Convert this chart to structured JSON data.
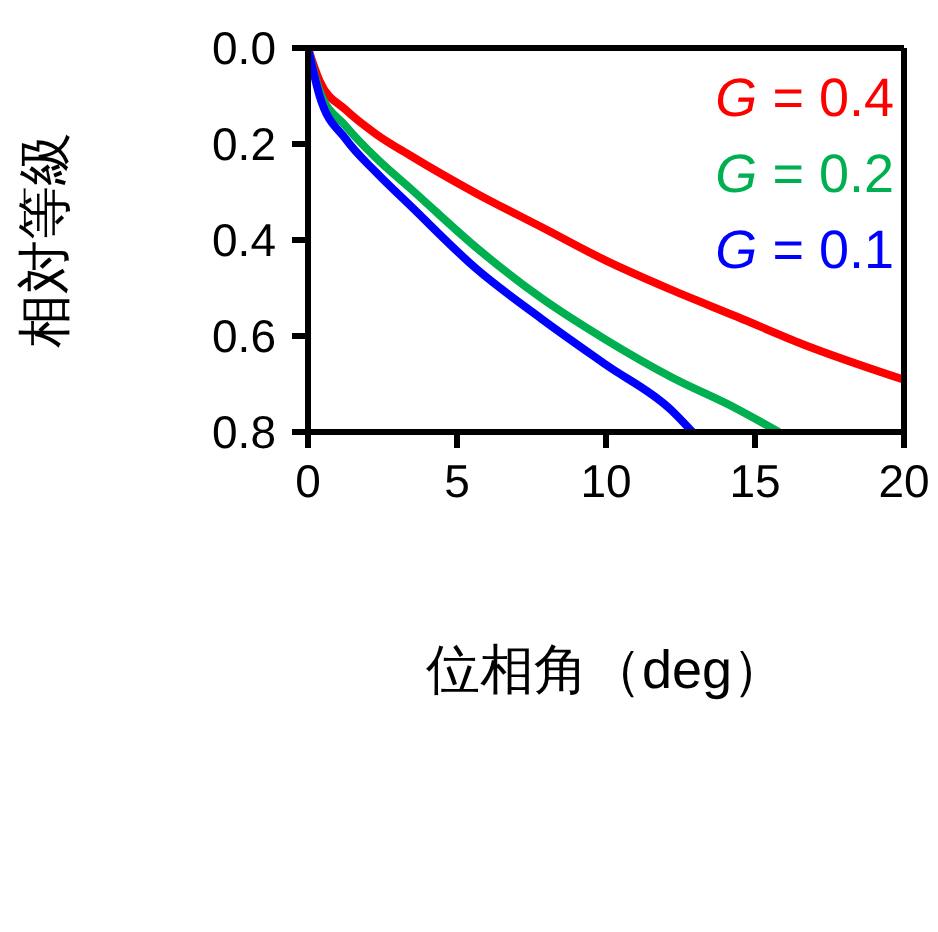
{
  "chart_data": {
    "type": "line",
    "xlabel": "位相角（deg）",
    "ylabel": "相対等級",
    "xlim": [
      0,
      20
    ],
    "xticks": [
      0,
      5,
      10,
      15,
      20
    ],
    "ylim": [
      0.8,
      0
    ],
    "yticks": [
      {
        "value": 0,
        "label": "0.0"
      },
      0.2,
      0.4,
      0.6,
      0.8
    ],
    "legend": "top right",
    "marker": "none",
    "line_style": "solid",
    "series": [
      {
        "name": "G = 0.4",
        "color": "#ff0000",
        "x": [
          0,
          0.4,
          1.27,
          2.3,
          3.46,
          5.65,
          7.83,
          10,
          12.2,
          14.4,
          16.6,
          20
        ],
        "values": [
          0,
          0.07,
          0.129,
          0.18,
          0.225,
          0.303,
          0.373,
          0.443,
          0.504,
          0.56,
          0.617,
          0.691
        ]
      },
      {
        "name": "G = 0.2",
        "color": "#00b050",
        "x": [
          0,
          0.39,
          1.27,
          2.3,
          3.46,
          5.65,
          7.83,
          10,
          12.2,
          14.4,
          15.8
        ],
        "values": [
          0,
          0.09,
          0.163,
          0.23,
          0.294,
          0.416,
          0.521,
          0.608,
          0.686,
          0.752,
          0.8
        ]
      },
      {
        "name": "G = 0.1",
        "color": "#0000ff",
        "x": [
          0,
          0.39,
          1.27,
          2.3,
          3.46,
          5.65,
          7.83,
          10,
          12.2,
          12.9
        ],
        "values": [
          0,
          0.1,
          0.19,
          0.26,
          0.33,
          0.46,
          0.564,
          0.66,
          0.755,
          0.8
        ]
      }
    ]
  }
}
